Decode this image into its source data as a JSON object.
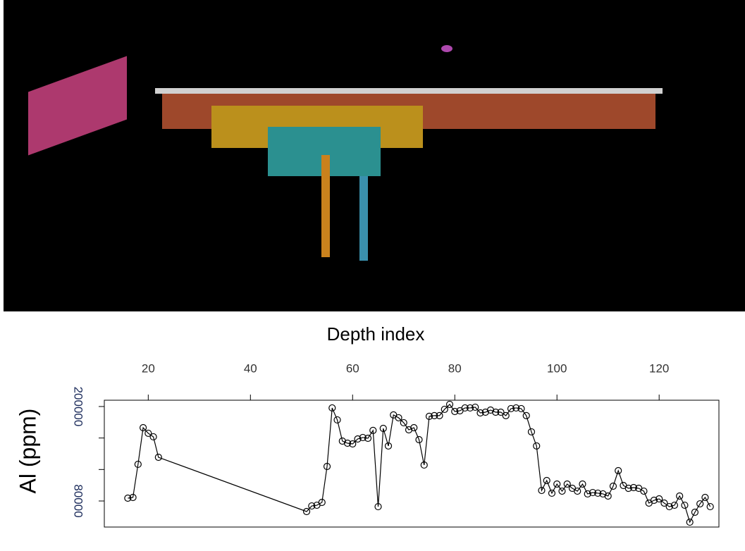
{
  "chart_data": {
    "type": "line",
    "xlabel": "Depth index",
    "ylabel": "Al (ppm)",
    "x": [
      16,
      17,
      18,
      19,
      20,
      21,
      22,
      51,
      52,
      53,
      54,
      55,
      56,
      57,
      58,
      59,
      60,
      61,
      62,
      63,
      64,
      65,
      66,
      67,
      68,
      69,
      70,
      71,
      72,
      73,
      74,
      75,
      76,
      77,
      78,
      79,
      80,
      81,
      82,
      83,
      84,
      85,
      86,
      87,
      88,
      89,
      90,
      91,
      92,
      93,
      94,
      95,
      96,
      97,
      98,
      99,
      100,
      101,
      102,
      103,
      104,
      105,
      106,
      107,
      108,
      109,
      110,
      111,
      112,
      113,
      114,
      115,
      116,
      117,
      118,
      119,
      120,
      121,
      122,
      123,
      124,
      125,
      126,
      127,
      128,
      129,
      130
    ],
    "values": [
      83600,
      84500,
      126600,
      173100,
      166000,
      161500,
      135500,
      66600,
      73700,
      74600,
      78200,
      123900,
      198200,
      183000,
      156100,
      153400,
      152500,
      158800,
      160600,
      159700,
      169600,
      72800,
      172200,
      149900,
      189300,
      185700,
      179400,
      170400,
      173100,
      157900,
      125700,
      187500,
      188400,
      188400,
      196400,
      202700,
      193700,
      194600,
      198200,
      198200,
      199100,
      191900,
      192800,
      195500,
      192800,
      192800,
      188400,
      197300,
      198200,
      197300,
      188400,
      167800,
      149900,
      93400,
      106000,
      89900,
      101500,
      92500,
      101500,
      96100,
      92500,
      101500,
      89000,
      90700,
      89900,
      89000,
      86300,
      98800,
      118500,
      99700,
      96100,
      97000,
      96100,
      92500,
      77300,
      80900,
      82700,
      77300,
      72800,
      74600,
      86300,
      74600,
      53100,
      65700,
      76400,
      84500,
      72800
    ],
    "color": "#000000",
    "marker": "circle",
    "xlim": [
      11.4,
      131.7
    ],
    "ylim": [
      46900,
      208000
    ],
    "xticks": [
      20,
      40,
      60,
      80,
      100,
      120
    ],
    "yticks": [
      80000,
      200000
    ],
    "yminor": [
      120000,
      160000
    ]
  }
}
